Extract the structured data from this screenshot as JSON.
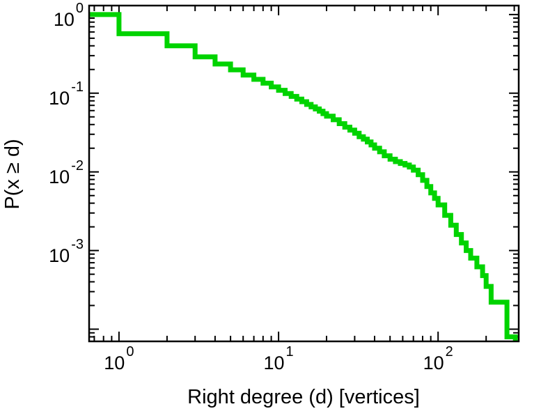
{
  "figure": {
    "type": "log-log step plot",
    "background": "#ffffff"
  },
  "colors": {
    "line": "#00d300",
    "axis": "#000000",
    "text": "#000000",
    "background": "#ffffff"
  },
  "axes": {
    "x_ticks": [
      {
        "base": "10",
        "exp": "0",
        "value": 1
      },
      {
        "base": "10",
        "exp": "1",
        "value": 10
      },
      {
        "base": "10",
        "exp": "2",
        "value": 100
      }
    ],
    "y_ticks": [
      {
        "base": "10",
        "exp": "0",
        "value": 1
      },
      {
        "base": "10",
        "exp": "-1",
        "value": 0.1
      },
      {
        "base": "10",
        "exp": "-2",
        "value": 0.01
      },
      {
        "base": "10",
        "exp": "-3",
        "value": 0.001
      }
    ]
  },
  "chart_data": {
    "type": "line",
    "subtype": "ccdf-step",
    "title": "",
    "xlabel": "Right degree (d) [vertices]",
    "ylabel": "P(x ≥ d)",
    "xscale": "log",
    "yscale": "log",
    "xlim": [
      0.65,
      320
    ],
    "ylim": [
      7e-05,
      1.3
    ],
    "grid": false,
    "legend": "none",
    "y_initial": 1.0,
    "x_end": 305,
    "x": [
      1,
      2,
      3,
      4,
      5,
      6,
      7,
      8,
      9,
      10,
      11,
      12,
      13,
      14,
      15,
      16,
      17,
      18,
      19,
      20,
      22,
      24,
      26,
      28,
      30,
      32,
      34,
      36,
      38,
      40,
      43,
      46,
      50,
      54,
      58,
      62,
      66,
      70,
      75,
      80,
      85,
      90,
      95,
      100,
      110,
      120,
      130,
      140,
      150,
      160,
      175,
      190,
      200,
      215,
      270
    ],
    "y": [
      0.57,
      0.4,
      0.29,
      0.235,
      0.198,
      0.17,
      0.15,
      0.134,
      0.12,
      0.109,
      0.099,
      0.091,
      0.084,
      0.078,
      0.072,
      0.067,
      0.063,
      0.059,
      0.055,
      0.051,
      0.046,
      0.041,
      0.037,
      0.034,
      0.031,
      0.028,
      0.026,
      0.024,
      0.022,
      0.02,
      0.018,
      0.016,
      0.0145,
      0.0135,
      0.0128,
      0.0122,
      0.0115,
      0.0105,
      0.0092,
      0.0078,
      0.0065,
      0.0054,
      0.0046,
      0.0038,
      0.0028,
      0.0021,
      0.0016,
      0.00125,
      0.001,
      0.0008,
      0.00062,
      0.00048,
      0.00035,
      0.00022,
      8e-05
    ]
  }
}
